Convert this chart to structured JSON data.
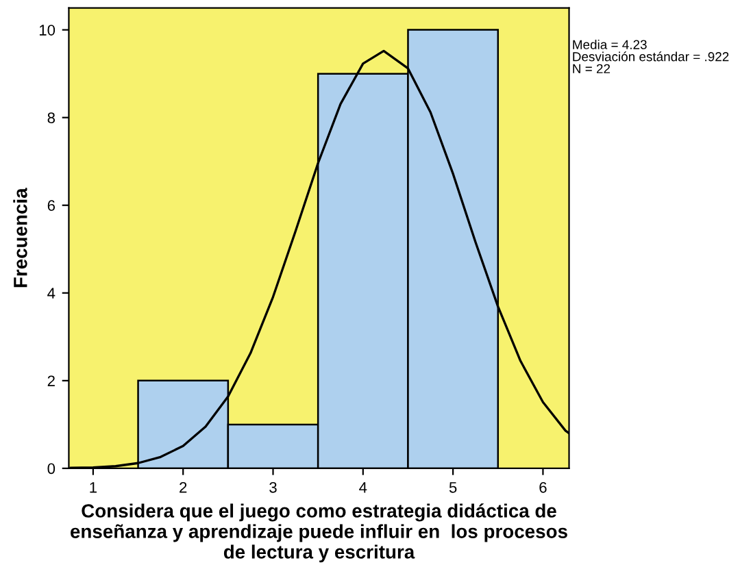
{
  "chart_data": {
    "type": "histogram",
    "xlabel": "Considera que el juego como estrategia didáctica de\nenseñanza y aprendizaje puede influir en  los procesos\nde lectura y escritura",
    "ylabel": "Frecuencia",
    "bins": [
      1.5,
      2.5,
      3.5,
      4.5,
      5.5
    ],
    "values": [
      2,
      1,
      9,
      10
    ],
    "color": "#aed0ee",
    "series": [
      {
        "type": "line",
        "color": "#000000",
        "x": [
          0.75,
          1.0,
          1.25,
          1.5,
          1.75,
          2.0,
          2.25,
          2.5,
          2.75,
          3.0,
          3.25,
          3.5,
          3.75,
          4.0,
          4.23,
          4.5,
          4.75,
          5.0,
          5.25,
          5.5,
          5.75,
          6.0,
          6.25,
          6.29
        ],
        "values": [
          0.01,
          0.02,
          0.05,
          0.12,
          0.26,
          0.51,
          0.95,
          1.64,
          2.63,
          3.91,
          5.41,
          6.96,
          8.31,
          9.23,
          9.52,
          9.12,
          8.12,
          6.72,
          5.16,
          3.69,
          2.45,
          1.51,
          0.86,
          0.8
        ]
      }
    ],
    "xlim": [
      0.73,
      6.29
    ],
    "xticks": [
      1,
      2,
      3,
      4,
      5,
      6
    ],
    "ylim": [
      0,
      10.5
    ],
    "yticks": [
      0,
      2,
      4,
      6,
      8,
      10
    ],
    "grid": false,
    "annotations": [
      "Media = 4.23\nDesviación estándar = .922\nN = 22"
    ]
  }
}
